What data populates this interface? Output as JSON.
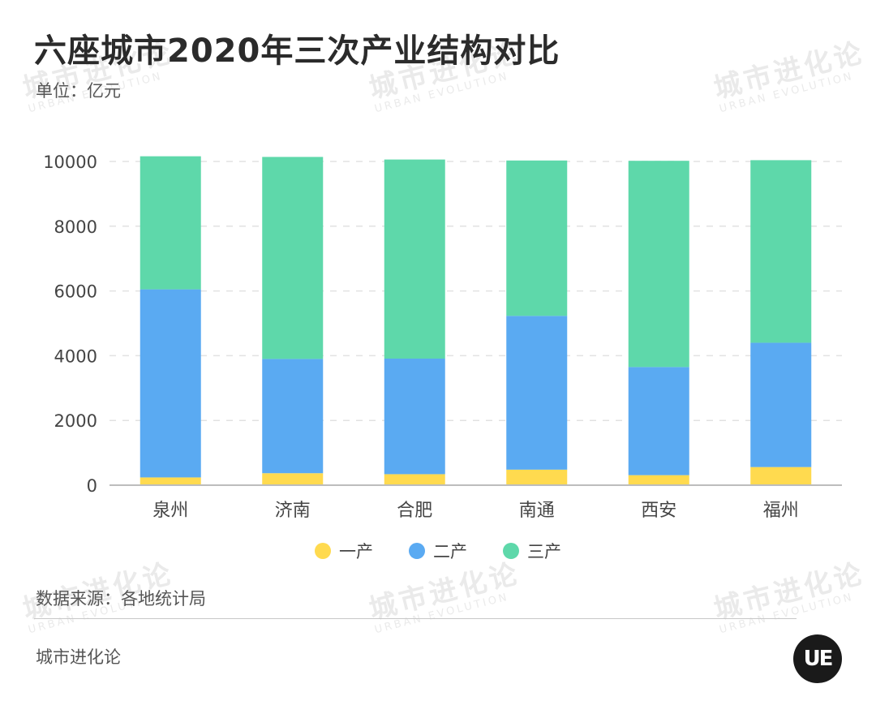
{
  "header": {
    "title": "六座城市2020年三次产业结构对比",
    "unit": "单位：亿元"
  },
  "footer": {
    "source": "数据来源：各地统计局",
    "brand": "城市进化论",
    "logo_text": "UE"
  },
  "watermark": {
    "cn": "城市进化论",
    "en": "URBAN EVOLUTION"
  },
  "chart_data": {
    "type": "bar",
    "stacked": true,
    "categories": [
      "泉州",
      "济南",
      "合肥",
      "南通",
      "西安",
      "福州"
    ],
    "series": [
      {
        "name": "一产",
        "color": "#FFDA4F",
        "values": [
          240,
          370,
          340,
          480,
          310,
          560
        ]
      },
      {
        "name": "二产",
        "color": "#5AAAF2",
        "values": [
          5810,
          3530,
          3570,
          4750,
          3340,
          3840
        ]
      },
      {
        "name": "三产",
        "color": "#5ED8AA",
        "values": [
          4110,
          6240,
          6150,
          4800,
          6370,
          5640
        ]
      }
    ],
    "yticks": [
      0,
      2000,
      4000,
      6000,
      8000,
      10000
    ],
    "ylim": [
      0,
      10000
    ],
    "grid": true,
    "legend_position": "bottom"
  }
}
